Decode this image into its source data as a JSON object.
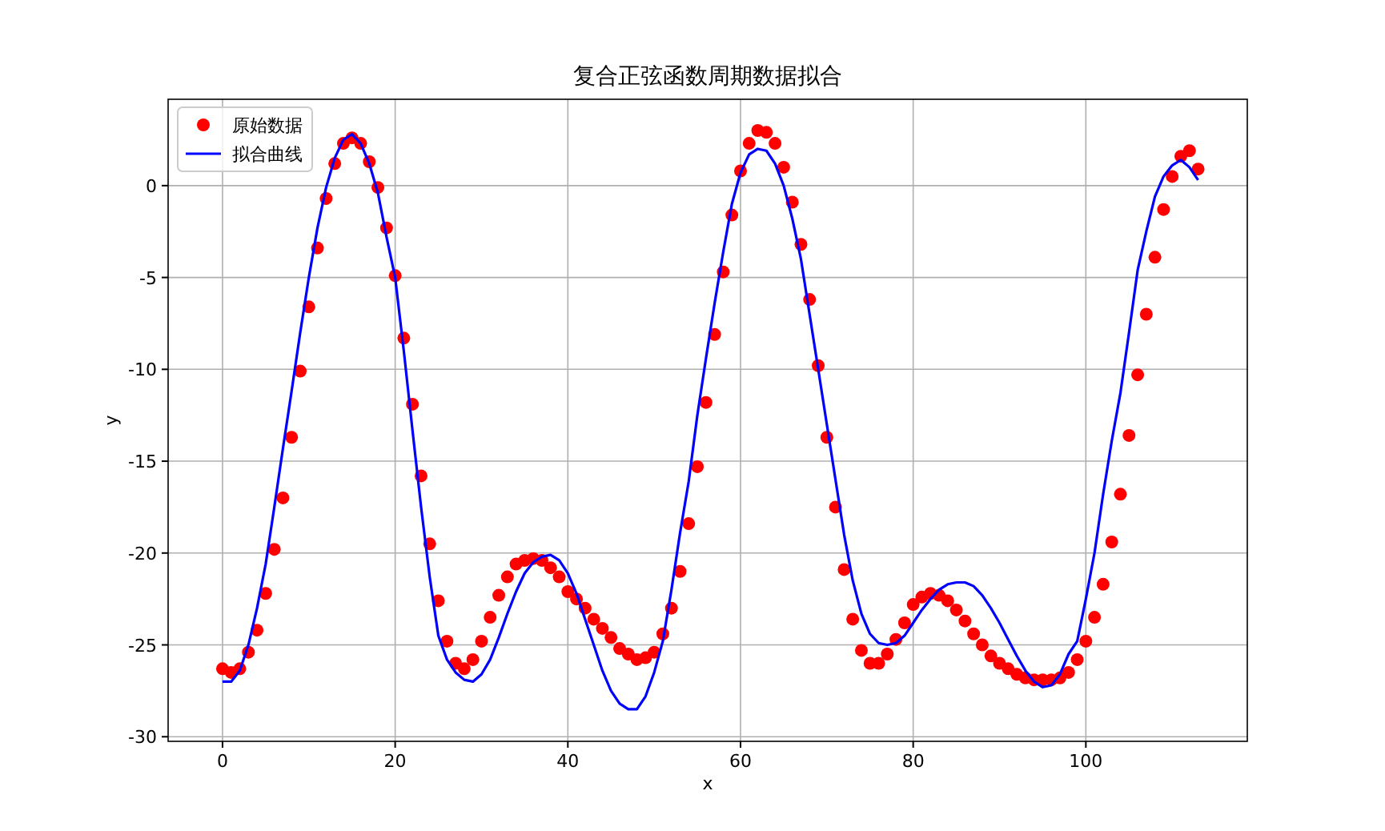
{
  "chart_data": {
    "type": "scatter",
    "title": "复合正弦函数周期数据拟合",
    "xlabel": "x",
    "ylabel": "y",
    "xlim": [
      -6.3,
      118.7
    ],
    "xticks": [
      0,
      20,
      40,
      60,
      80,
      100
    ],
    "ylim": [
      -30.25,
      4.7
    ],
    "yticks": [
      -30,
      -25,
      -20,
      -15,
      -10,
      -5,
      0
    ],
    "grid": true,
    "legend": "top left",
    "marker": "circle",
    "series": [
      {
        "name": "原始数据",
        "color": "#ff0000",
        "x": [
          0,
          1,
          2,
          3,
          4,
          5,
          6,
          7,
          8,
          9,
          10,
          11,
          12,
          13,
          14,
          15,
          16,
          17,
          18,
          19,
          20,
          21,
          22,
          23,
          24,
          25,
          26,
          27,
          28,
          29,
          30,
          31,
          32,
          33,
          34,
          35,
          36,
          37,
          38,
          39,
          40,
          41,
          42,
          43,
          44,
          45,
          46,
          47,
          48,
          49,
          50,
          51,
          52,
          53,
          54,
          55,
          56,
          57,
          58,
          59,
          60,
          61,
          62,
          63,
          64,
          65,
          66,
          67,
          68,
          69,
          70,
          71,
          72,
          73,
          74,
          75,
          76,
          77,
          78,
          79,
          80,
          81,
          82,
          83,
          84,
          85,
          86,
          87,
          88,
          89,
          90,
          91,
          92,
          93,
          94,
          95,
          96,
          97,
          98,
          99,
          100,
          101,
          102,
          103,
          104,
          105,
          106,
          107,
          108,
          109,
          110,
          111,
          112,
          113
        ],
        "values": [
          -26.3,
          -26.5,
          -26.3,
          -25.4,
          -24.2,
          -22.2,
          -19.8,
          -17.0,
          -13.7,
          -10.1,
          -6.6,
          -3.4,
          -0.7,
          1.2,
          2.3,
          2.6,
          2.3,
          1.3,
          -0.1,
          -2.3,
          -4.9,
          -8.3,
          -11.9,
          -15.8,
          -19.5,
          -22.6,
          -24.8,
          -26.0,
          -26.3,
          -25.8,
          -24.8,
          -23.5,
          -22.3,
          -21.3,
          -20.6,
          -20.4,
          -20.3,
          -20.4,
          -20.8,
          -21.3,
          -22.1,
          -22.5,
          -23.0,
          -23.6,
          -24.1,
          -24.6,
          -25.2,
          -25.5,
          -25.8,
          -25.7,
          -25.4,
          -24.4,
          -23.0,
          -21.0,
          -18.4,
          -15.3,
          -11.8,
          -8.1,
          -4.7,
          -1.6,
          0.8,
          2.3,
          3.0,
          2.9,
          2.3,
          1.0,
          -0.9,
          -3.2,
          -6.2,
          -9.8,
          -13.7,
          -17.5,
          -20.9,
          -23.6,
          -25.3,
          -26.0,
          -26.0,
          -25.5,
          -24.7,
          -23.8,
          -22.8,
          -22.4,
          -22.2,
          -22.3,
          -22.6,
          -23.1,
          -23.7,
          -24.4,
          -25.0,
          -25.6,
          -26.0,
          -26.3,
          -26.6,
          -26.8,
          -26.9,
          -26.9,
          -26.9,
          -26.8,
          -26.5,
          -25.8,
          -24.8,
          -23.5,
          -21.7,
          -19.4,
          -16.8,
          -13.6,
          -10.3,
          -7.0,
          -3.9,
          -1.3,
          0.5,
          1.6,
          1.9,
          0.9
        ]
      },
      {
        "name": "拟合曲线",
        "type": "line",
        "color": "#0000ff",
        "marker": "none",
        "x": [
          0,
          1,
          2,
          3,
          4,
          5,
          6,
          7,
          8,
          9,
          10,
          11,
          12,
          13,
          14,
          15,
          16,
          17,
          18,
          19,
          20,
          21,
          22,
          23,
          24,
          25,
          26,
          27,
          28,
          29,
          30,
          31,
          32,
          33,
          34,
          35,
          36,
          37,
          38,
          39,
          40,
          41,
          42,
          43,
          44,
          45,
          46,
          47,
          48,
          49,
          50,
          51,
          52,
          53,
          54,
          55,
          56,
          57,
          58,
          59,
          60,
          61,
          62,
          63,
          64,
          65,
          66,
          67,
          68,
          69,
          70,
          71,
          72,
          73,
          74,
          75,
          76,
          77,
          78,
          79,
          80,
          81,
          82,
          83,
          84,
          85,
          86,
          87,
          88,
          89,
          90,
          91,
          92,
          93,
          94,
          95,
          96,
          97,
          98,
          99,
          100,
          101,
          102,
          103,
          104,
          105,
          106,
          107,
          108,
          109,
          110,
          111,
          112,
          113
        ],
        "values": [
          -27.0,
          -27.0,
          -26.4,
          -25.0,
          -23.0,
          -20.6,
          -17.5,
          -14.3,
          -11.2,
          -8.0,
          -5.0,
          -2.3,
          -0.1,
          1.5,
          2.5,
          2.8,
          2.3,
          1.2,
          -0.4,
          -2.8,
          -5.0,
          -9.0,
          -13.3,
          -17.5,
          -21.3,
          -24.5,
          -25.8,
          -26.5,
          -26.9,
          -27.0,
          -26.6,
          -25.8,
          -24.6,
          -23.3,
          -22.1,
          -21.1,
          -20.5,
          -20.2,
          -20.1,
          -20.4,
          -21.1,
          -22.2,
          -23.6,
          -25.0,
          -26.4,
          -27.5,
          -28.2,
          -28.5,
          -28.5,
          -27.8,
          -26.5,
          -24.8,
          -22.0,
          -18.9,
          -16.1,
          -12.5,
          -9.4,
          -6.4,
          -3.6,
          -1.0,
          0.7,
          1.7,
          2.0,
          1.9,
          1.2,
          0.0,
          -1.8,
          -4.0,
          -7.0,
          -10.0,
          -13.0,
          -16.0,
          -19.0,
          -21.5,
          -23.3,
          -24.4,
          -24.9,
          -25.0,
          -24.9,
          -24.5,
          -23.8,
          -23.1,
          -22.5,
          -22.0,
          -21.7,
          -21.6,
          -21.6,
          -21.8,
          -22.3,
          -23.0,
          -23.8,
          -24.7,
          -25.6,
          -26.4,
          -27.0,
          -27.3,
          -27.2,
          -26.6,
          -25.5,
          -24.8,
          -22.5,
          -20.0,
          -16.8,
          -13.9,
          -11.3,
          -8.0,
          -4.6,
          -2.5,
          -0.6,
          0.5,
          1.1,
          1.4,
          1.0,
          0.3
        ]
      }
    ]
  }
}
